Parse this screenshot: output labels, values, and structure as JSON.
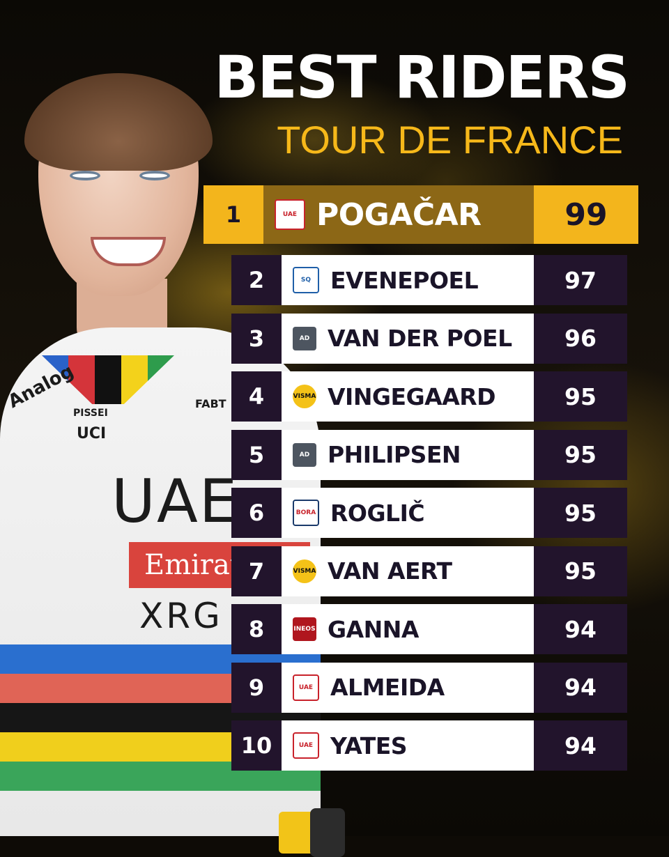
{
  "header": {
    "title": "BEST RIDERS",
    "subtitle": "TOUR DE FRANCE"
  },
  "colors": {
    "accent_gold": "#f3b51c",
    "dark_purple": "#22142c",
    "highlight_brown": "#8c6716"
  },
  "jersey": {
    "brand1": "Analog",
    "brand2": "PISSEI",
    "brand3": "UCI",
    "team": "UAE",
    "sponsor": "Emirates",
    "sponsor2": "XRG",
    "brand4": "FABT"
  },
  "riders": [
    {
      "rank": "1",
      "name": "POGAČAR",
      "score": "99",
      "team_logo": "uae-team-emirates-logo",
      "logo_text": "UAE"
    },
    {
      "rank": "2",
      "name": "EVENEPOEL",
      "score": "97",
      "team_logo": "soudal-quickstep-logo",
      "logo_text": "SQ"
    },
    {
      "rank": "3",
      "name": "VAN DER POEL",
      "score": "96",
      "team_logo": "alpecin-deceuninck-logo",
      "logo_text": "AD"
    },
    {
      "rank": "4",
      "name": "VINGEGAARD",
      "score": "95",
      "team_logo": "visma-lease-a-bike-logo",
      "logo_text": "VISMA"
    },
    {
      "rank": "5",
      "name": "PHILIPSEN",
      "score": "95",
      "team_logo": "alpecin-deceuninck-logo",
      "logo_text": "AD"
    },
    {
      "rank": "6",
      "name": "ROGLIČ",
      "score": "95",
      "team_logo": "red-bull-bora-hansgrohe-logo",
      "logo_text": "BORA"
    },
    {
      "rank": "7",
      "name": "VAN AERT",
      "score": "95",
      "team_logo": "visma-lease-a-bike-logo",
      "logo_text": "VISMA"
    },
    {
      "rank": "8",
      "name": "GANNA",
      "score": "94",
      "team_logo": "ineos-grenadiers-logo",
      "logo_text": "INEOS"
    },
    {
      "rank": "9",
      "name": "ALMEIDA",
      "score": "94",
      "team_logo": "uae-team-emirates-logo",
      "logo_text": "UAE"
    },
    {
      "rank": "10",
      "name": "YATES",
      "score": "94",
      "team_logo": "uae-team-emirates-logo",
      "logo_text": "UAE"
    }
  ]
}
